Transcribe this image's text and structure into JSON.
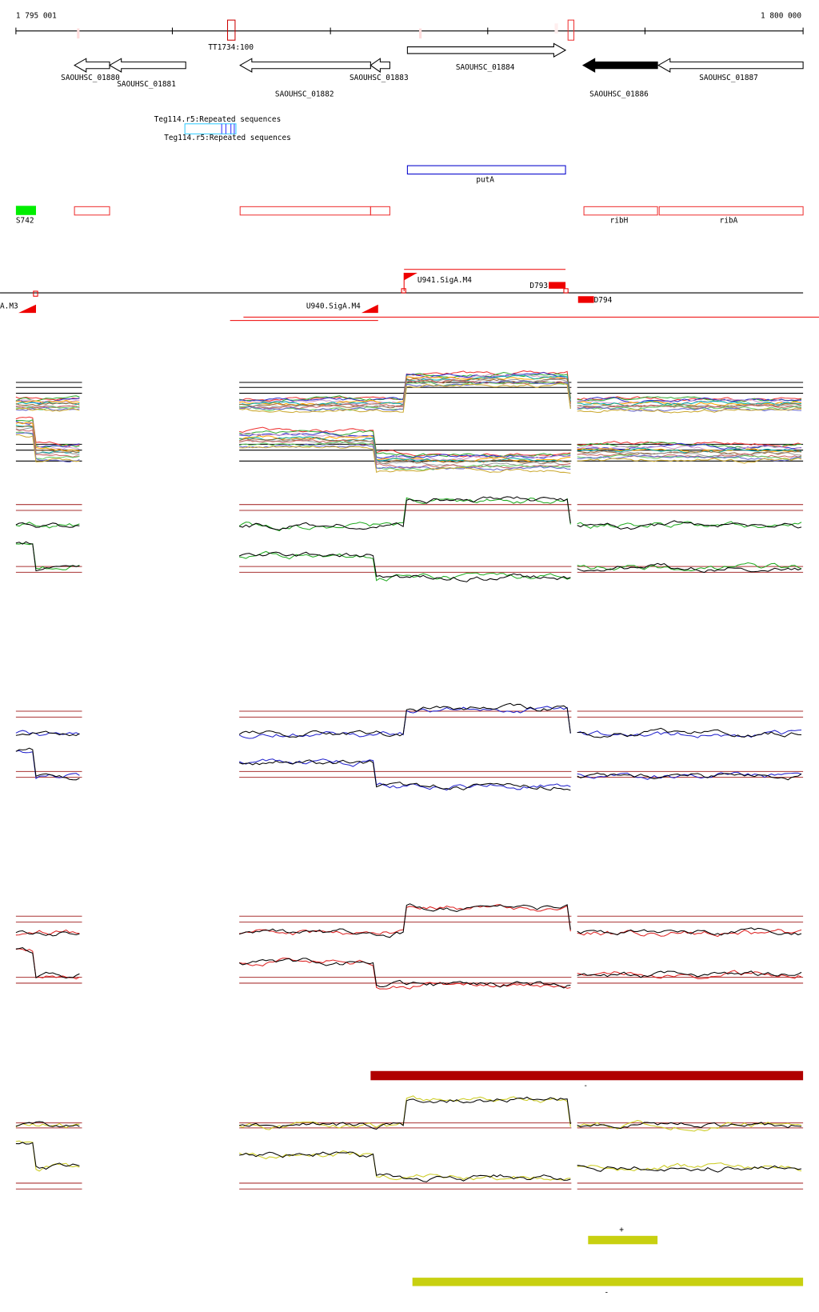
{
  "ruler": {
    "start": "1 795 001",
    "end": "1 800 000",
    "terminator": "TT1734:100"
  },
  "genes": [
    "SAOUHSC_01880",
    "SAOUHSC_01881",
    "SAOUHSC_01882",
    "SAOUHSC_01883",
    "SAOUHSC_01884",
    "SAOUHSC_01886",
    "SAOUHSC_01887"
  ],
  "repeats": [
    "Teg114.r5:Repeated sequences",
    "Teg114.r5:Repeated sequences"
  ],
  "operon": "putA",
  "features": {
    "srna": "S742",
    "ribH": "ribH",
    "ribA": "ribA"
  },
  "promoters": [
    "U941.SigA.M4",
    "D793",
    "A.M3",
    "U940.SigA.M4",
    "D794"
  ],
  "strands": [
    "-",
    "+",
    "-"
  ]
}
